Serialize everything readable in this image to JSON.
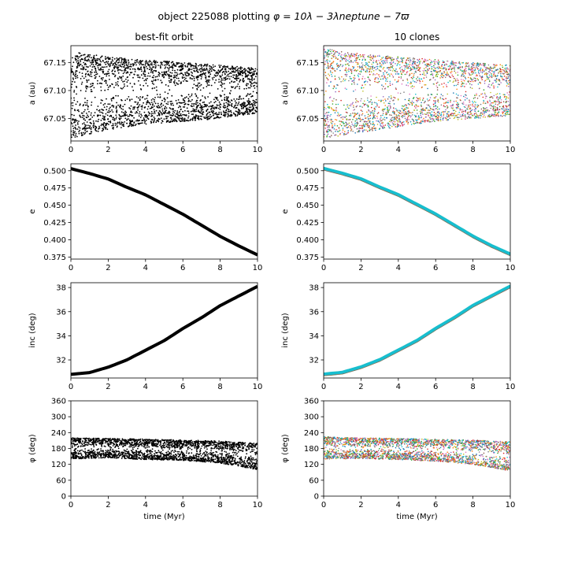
{
  "figure": {
    "title_prefix": "object 225088 plotting ",
    "title_formula": "φ = 10λ − 3λneptune − 7ϖ"
  },
  "colors": {
    "best_fit": "#000000",
    "clones": [
      "#1f77b4",
      "#ff7f0e",
      "#2ca02c",
      "#d62728",
      "#9467bd",
      "#8c564b",
      "#e377c2",
      "#7f7f7f",
      "#bcbd22",
      "#17becf"
    ]
  },
  "chart_data": [
    {
      "id": "a-best",
      "type": "scatter",
      "column_title": "best-fit orbit",
      "ylabel": "a (au)",
      "xlabel": "",
      "xlim": [
        0,
        10
      ],
      "ylim": [
        67.01,
        67.18
      ],
      "xticks": [
        "0",
        "2",
        "4",
        "6",
        "8",
        "10"
      ],
      "yticks": [
        "67.05",
        "67.10",
        "67.15"
      ],
      "series": [
        {
          "x": [
            0,
            2,
            4,
            6,
            8,
            10
          ],
          "upper": [
            67.17,
            67.16,
            67.155,
            67.15,
            67.145,
            67.14
          ],
          "lower": [
            67.015,
            67.03,
            67.04,
            67.045,
            67.05,
            67.06
          ],
          "clones": false
        }
      ]
    },
    {
      "id": "a-clones",
      "type": "scatter",
      "column_title": "10 clones",
      "ylabel": "a (au)",
      "xlabel": "",
      "xlim": [
        0,
        10
      ],
      "ylim": [
        67.01,
        67.18
      ],
      "xticks": [
        "0",
        "2",
        "4",
        "6",
        "8",
        "10"
      ],
      "yticks": [
        "67.05",
        "67.10",
        "67.15"
      ],
      "series": [
        {
          "x": [
            0,
            2,
            4,
            6,
            8,
            10
          ],
          "upper": [
            67.175,
            67.165,
            67.16,
            67.155,
            67.15,
            67.145
          ],
          "lower": [
            67.015,
            67.025,
            67.035,
            67.045,
            67.05,
            67.055
          ],
          "clones": true
        }
      ]
    },
    {
      "id": "e-best",
      "type": "line",
      "column_title": "",
      "ylabel": "e",
      "xlabel": "",
      "xlim": [
        0,
        10
      ],
      "ylim": [
        0.372,
        0.51
      ],
      "xticks": [
        "0",
        "2",
        "4",
        "6",
        "8",
        "10"
      ],
      "yticks": [
        "0.375",
        "0.400",
        "0.425",
        "0.450",
        "0.475",
        "0.500"
      ],
      "series": [
        {
          "x": [
            0,
            1,
            2,
            3,
            4,
            5,
            6,
            7,
            8,
            9,
            10
          ],
          "y": [
            0.503,
            0.496,
            0.488,
            0.476,
            0.465,
            0.451,
            0.437,
            0.421,
            0.405,
            0.391,
            0.378
          ],
          "clones": false
        }
      ]
    },
    {
      "id": "e-clones",
      "type": "line",
      "column_title": "",
      "ylabel": "e",
      "xlabel": "",
      "xlim": [
        0,
        10
      ],
      "ylim": [
        0.372,
        0.51
      ],
      "xticks": [
        "0",
        "2",
        "4",
        "6",
        "8",
        "10"
      ],
      "yticks": [
        "0.375",
        "0.400",
        "0.425",
        "0.450",
        "0.475",
        "0.500"
      ],
      "series": [
        {
          "x": [
            0,
            1,
            2,
            3,
            4,
            5,
            6,
            7,
            8,
            9,
            10
          ],
          "y": [
            0.503,
            0.496,
            0.488,
            0.476,
            0.465,
            0.451,
            0.437,
            0.421,
            0.405,
            0.391,
            0.379
          ],
          "clones": true
        }
      ]
    },
    {
      "id": "inc-best",
      "type": "line",
      "column_title": "",
      "ylabel": "inc (deg)",
      "xlabel": "",
      "xlim": [
        0,
        10
      ],
      "ylim": [
        30.5,
        38.4
      ],
      "xticks": [
        "0",
        "2",
        "4",
        "6",
        "8",
        "10"
      ],
      "yticks": [
        "32",
        "34",
        "36",
        "38"
      ],
      "series": [
        {
          "x": [
            0,
            1,
            2,
            3,
            4,
            5,
            6,
            7,
            8,
            9,
            10
          ],
          "y": [
            30.8,
            30.95,
            31.4,
            32.0,
            32.8,
            33.6,
            34.6,
            35.5,
            36.5,
            37.3,
            38.1
          ],
          "clones": false
        }
      ]
    },
    {
      "id": "inc-clones",
      "type": "line",
      "column_title": "",
      "ylabel": "inc (deg)",
      "xlabel": "",
      "xlim": [
        0,
        10
      ],
      "ylim": [
        30.5,
        38.4
      ],
      "xticks": [
        "0",
        "2",
        "4",
        "6",
        "8",
        "10"
      ],
      "yticks": [
        "32",
        "34",
        "36",
        "38"
      ],
      "series": [
        {
          "x": [
            0,
            1,
            2,
            3,
            4,
            5,
            6,
            7,
            8,
            9,
            10
          ],
          "y": [
            30.8,
            30.95,
            31.4,
            32.0,
            32.8,
            33.6,
            34.6,
            35.5,
            36.5,
            37.3,
            38.1
          ],
          "clones": true
        }
      ]
    },
    {
      "id": "phi-best",
      "type": "scatter",
      "column_title": "",
      "ylabel": "φ (deg)",
      "xlabel": "time (Myr)",
      "xlim": [
        0,
        10
      ],
      "ylim": [
        0,
        360
      ],
      "xticks": [
        "0",
        "2",
        "4",
        "6",
        "8",
        "10"
      ],
      "yticks": [
        "0",
        "60",
        "120",
        "180",
        "240",
        "300",
        "360"
      ],
      "series": [
        {
          "x": [
            0,
            2,
            4,
            6,
            8,
            10
          ],
          "upper": [
            220,
            218,
            215,
            212,
            208,
            200
          ],
          "lower": [
            140,
            145,
            138,
            135,
            125,
            100
          ],
          "clones": false
        }
      ]
    },
    {
      "id": "phi-clones",
      "type": "scatter",
      "column_title": "",
      "ylabel": "φ (deg)",
      "xlabel": "time (Myr)",
      "xlim": [
        0,
        10
      ],
      "ylim": [
        0,
        360
      ],
      "xticks": [
        "0",
        "2",
        "4",
        "6",
        "8",
        "10"
      ],
      "yticks": [
        "0",
        "60",
        "120",
        "180",
        "240",
        "300",
        "360"
      ],
      "series": [
        {
          "x": [
            0,
            2,
            4,
            6,
            8,
            10
          ],
          "upper": [
            225,
            220,
            218,
            215,
            212,
            205
          ],
          "lower": [
            140,
            142,
            138,
            132,
            120,
            95
          ],
          "clones": true
        }
      ]
    }
  ]
}
